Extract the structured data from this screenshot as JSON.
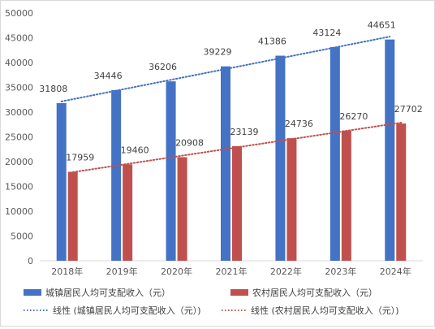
{
  "chart_data": {
    "type": "bar",
    "categories": [
      "2018年",
      "2019年",
      "2020年",
      "2021年",
      "2022年",
      "2023年",
      "2024年"
    ],
    "series": [
      {
        "name": "城镇居民人均可支配收入（元）",
        "values": [
          31808,
          34446,
          36206,
          39229,
          41386,
          43124,
          44651
        ],
        "color": "#4472c4"
      },
      {
        "name": "农村居民人均可支配收入（元）",
        "values": [
          17959,
          19460,
          20908,
          23139,
          24736,
          26270,
          27702
        ],
        "color": "#c0504d"
      }
    ],
    "trendlines": [
      {
        "name": "线性 (城镇居民人均可支配收入（元）)",
        "series_index": 0,
        "type": "linear",
        "style": "dotted",
        "color": "#4472c4"
      },
      {
        "name": "线性 (农村居民人均可支配收入（元）)",
        "series_index": 1,
        "type": "linear",
        "style": "dotted",
        "color": "#c0504d"
      }
    ],
    "ylim": [
      0,
      50000
    ],
    "ytick_step": 5000,
    "yticks": [
      "0",
      "5000",
      "10000",
      "15000",
      "20000",
      "25000",
      "30000",
      "35000",
      "40000",
      "45000",
      "50000"
    ],
    "grid": false,
    "legend_position": "bottom",
    "title": "",
    "xlabel": "",
    "ylabel": ""
  }
}
